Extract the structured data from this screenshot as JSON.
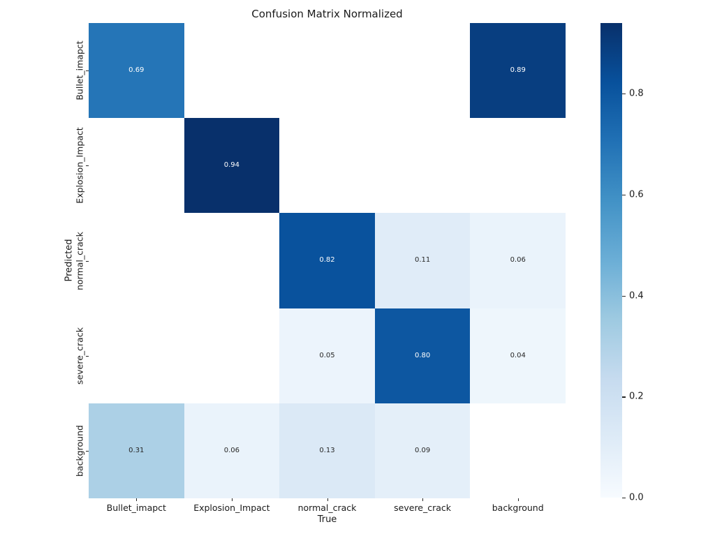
{
  "chart_data": {
    "type": "heatmap",
    "title": "Confusion Matrix Normalized",
    "xlabel": "True",
    "ylabel": "Predicted",
    "x_categories": [
      "Bullet_imapct",
      "Explosion_Impact",
      "normal_crack",
      "severe_crack",
      "background"
    ],
    "y_categories": [
      "Bullet_imapct",
      "Explosion_Impact",
      "normal_crack",
      "severe_crack",
      "background"
    ],
    "matrix": [
      [
        0.69,
        null,
        null,
        null,
        0.89
      ],
      [
        null,
        0.94,
        null,
        null,
        null
      ],
      [
        null,
        null,
        0.82,
        0.11,
        0.06
      ],
      [
        null,
        null,
        0.05,
        0.8,
        0.04
      ],
      [
        0.31,
        0.06,
        0.13,
        0.09,
        null
      ]
    ],
    "vmin": 0.0,
    "vmax": 0.94,
    "value_decimals": 2,
    "colorbar_ticks": [
      0.0,
      0.2,
      0.4,
      0.6,
      0.8
    ],
    "colorbar_position": "right",
    "colormap": {
      "name": "Blues",
      "stops": [
        "#f7fbff",
        "#deebf7",
        "#c6dbef",
        "#9ecae1",
        "#6baed6",
        "#4292c6",
        "#2171b5",
        "#08519c",
        "#08306b"
      ]
    },
    "empty_cell_color": "#ffffff",
    "annotation_colors": {
      "light": "#ffffff",
      "dark": "#262626"
    },
    "grid": false
  }
}
